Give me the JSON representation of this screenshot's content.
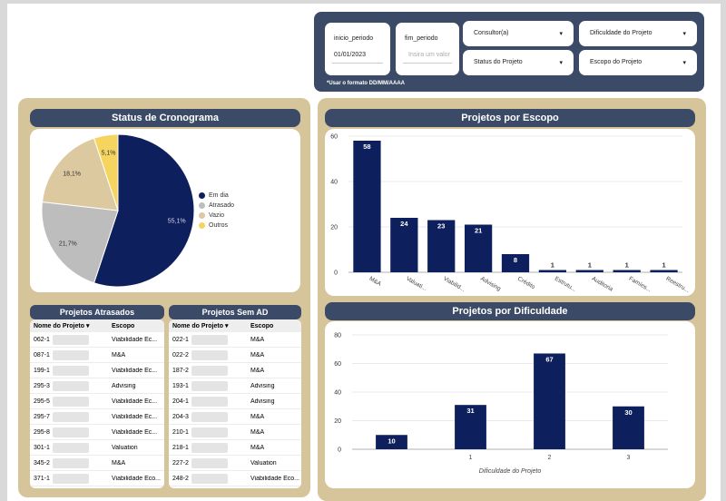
{
  "filters": {
    "inicio": {
      "label": "inicio_periodo",
      "value": "01/01/2023"
    },
    "fim": {
      "label": "fim_periodo",
      "placeholder": "Insira um valor"
    },
    "dropdowns": [
      {
        "label": "Consultor(a)"
      },
      {
        "label": "Dificuldade do Projeto"
      },
      {
        "label": "Status do Projeto"
      },
      {
        "label": "Escopo do Projeto"
      }
    ],
    "note": "*Usar o formato DD/MM/AAAA"
  },
  "status_panel": {
    "title": "Status de Cronograma"
  },
  "escopo_panel": {
    "title": "Projetos por Escopo"
  },
  "dificuldade_panel": {
    "title": "Projetos por Dificuldade"
  },
  "atrasados": {
    "title": "Projetos Atrasados",
    "headers": [
      "Nome do Projeto",
      "Escopo"
    ],
    "rows": [
      {
        "id": "062-1",
        "escopo": "Viabilidade Ec..."
      },
      {
        "id": "087-1",
        "escopo": "M&A"
      },
      {
        "id": "199-1",
        "escopo": "Viabilidade Ec..."
      },
      {
        "id": "295-3",
        "escopo": "Advising"
      },
      {
        "id": "295-5",
        "escopo": "Viabilidade Ec..."
      },
      {
        "id": "295-7",
        "escopo": "Viabilidade Ec..."
      },
      {
        "id": "295-8",
        "escopo": "Viabilidade Ec..."
      },
      {
        "id": "301-1",
        "escopo": "Valuation"
      },
      {
        "id": "345-2",
        "escopo": "M&A"
      },
      {
        "id": "371-1",
        "escopo": "Viabilidade Eco..."
      }
    ]
  },
  "sem_ad": {
    "title": "Projetos Sem AD",
    "headers": [
      "Nome do Projeto",
      "Escopo"
    ],
    "rows": [
      {
        "id": "022-1",
        "escopo": "M&A"
      },
      {
        "id": "022-2",
        "escopo": "M&A"
      },
      {
        "id": "187-2",
        "escopo": "M&A"
      },
      {
        "id": "193-1",
        "escopo": "Advising"
      },
      {
        "id": "204-1",
        "escopo": "Advising"
      },
      {
        "id": "204-3",
        "escopo": "M&A"
      },
      {
        "id": "210-1",
        "escopo": "M&A"
      },
      {
        "id": "218-1",
        "escopo": "M&A"
      },
      {
        "id": "227-2",
        "escopo": "Valuation"
      },
      {
        "id": "248-2",
        "escopo": "Viabilidade Eco..."
      }
    ]
  },
  "chart_data": [
    {
      "type": "pie",
      "title": "Status de Cronograma",
      "slices": [
        {
          "name": "Em dia",
          "value": 55.1,
          "label": "55,1%",
          "color": "#0d1f5c"
        },
        {
          "name": "Atrasado",
          "value": 21.7,
          "label": "21,7%",
          "color": "#bdbdbd"
        },
        {
          "name": "Vazio",
          "value": 18.1,
          "label": "18,1%",
          "color": "#dcc9a0"
        },
        {
          "name": "Outros",
          "value": 5.1,
          "label": "5,1%",
          "color": "#f5d55f"
        }
      ],
      "legend": "right"
    },
    {
      "type": "bar",
      "title": "Projetos por Escopo",
      "categories": [
        "M&A",
        "Valuati...",
        "Viabilid...",
        "Advising",
        "Crédito",
        "Estrutu...",
        "Auditoria",
        "Famíes...",
        "Reestru..."
      ],
      "values": [
        58,
        24,
        23,
        21,
        8,
        1,
        1,
        1,
        1
      ],
      "ylim": [
        0,
        60
      ],
      "yticks": [
        0,
        20,
        40,
        60
      ],
      "color": "#0d1f5c"
    },
    {
      "type": "bar",
      "title": "Projetos por Dificuldade",
      "categories": [
        "",
        "1",
        "2",
        "3"
      ],
      "values": [
        10,
        31,
        67,
        30
      ],
      "xlabel": "Dificuldade do Projeto",
      "ylim": [
        0,
        80
      ],
      "yticks": [
        0,
        20,
        40,
        60,
        80
      ],
      "color": "#0d1f5c"
    }
  ]
}
